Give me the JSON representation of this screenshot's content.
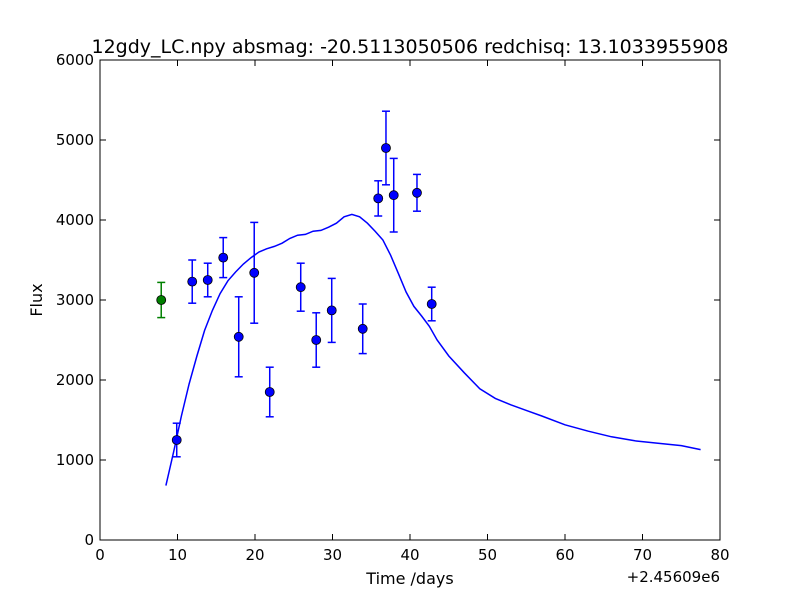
{
  "chart_data": {
    "type": "scatter",
    "title": "12gdy_LC.npy absmag: -20.5113050506 redchisq: 13.1033955908",
    "xlabel": "Time /days",
    "ylabel": "Flux",
    "x_offset_label": "+2.45609e6",
    "xlim": [
      0,
      80
    ],
    "ylim": [
      0,
      6000
    ],
    "xticks": [
      0,
      10,
      20,
      30,
      40,
      50,
      60,
      70,
      80
    ],
    "yticks": [
      0,
      1000,
      2000,
      3000,
      4000,
      5000,
      6000
    ],
    "grid": false,
    "legend": "none",
    "colors": {
      "points": "#0000ff",
      "outlier": "#008000",
      "model": "#0000ff"
    },
    "series": [
      {
        "kind": "errorbar",
        "color": "#0000ff",
        "points": [
          {
            "x": 9.9,
            "y": 1250,
            "err": 210
          },
          {
            "x": 11.9,
            "y": 3230,
            "err": 270
          },
          {
            "x": 13.9,
            "y": 3250,
            "err": 210
          },
          {
            "x": 15.9,
            "y": 3530,
            "err": 250
          },
          {
            "x": 17.9,
            "y": 2540,
            "err": 500
          },
          {
            "x": 19.9,
            "y": 3340,
            "err": 630
          },
          {
            "x": 21.9,
            "y": 1850,
            "err": 310
          },
          {
            "x": 25.9,
            "y": 3160,
            "err": 300
          },
          {
            "x": 27.9,
            "y": 2500,
            "err": 340
          },
          {
            "x": 29.9,
            "y": 2870,
            "err": 400
          },
          {
            "x": 33.9,
            "y": 2640,
            "err": 310
          },
          {
            "x": 35.9,
            "y": 4270,
            "err": 220
          },
          {
            "x": 36.9,
            "y": 4900,
            "err": 460
          },
          {
            "x": 37.9,
            "y": 4310,
            "err": 460
          },
          {
            "x": 40.9,
            "y": 4340,
            "err": 230
          },
          {
            "x": 42.8,
            "y": 2950,
            "err": 210
          }
        ]
      },
      {
        "kind": "errorbar",
        "color": "#008000",
        "points": [
          {
            "x": 7.9,
            "y": 3000,
            "err": 220
          }
        ]
      },
      {
        "kind": "line",
        "color": "#0000ff",
        "x": [
          8.5,
          9.5,
          10.5,
          11.5,
          12.5,
          13.5,
          14.5,
          15.5,
          16.5,
          17.5,
          18.5,
          19.5,
          20.5,
          21.5,
          22.5,
          23.5,
          24.5,
          25.5,
          26.5,
          27.5,
          28.5,
          29.5,
          30.5,
          31.5,
          32.5,
          33.5,
          34.5,
          35.5,
          36.5,
          37.5,
          38.5,
          39.5,
          40.5,
          41.5,
          42.5,
          43.5,
          45,
          47,
          49,
          51,
          53,
          55,
          57,
          60,
          63,
          66,
          69,
          72,
          75,
          77.5
        ],
        "y": [
          680,
          1100,
          1550,
          1950,
          2300,
          2620,
          2870,
          3080,
          3240,
          3350,
          3450,
          3530,
          3600,
          3640,
          3670,
          3710,
          3770,
          3810,
          3820,
          3860,
          3870,
          3910,
          3960,
          4040,
          4070,
          4040,
          3960,
          3860,
          3750,
          3560,
          3330,
          3100,
          2920,
          2800,
          2670,
          2500,
          2300,
          2090,
          1890,
          1770,
          1690,
          1620,
          1550,
          1440,
          1360,
          1290,
          1240,
          1210,
          1180,
          1130
        ]
      }
    ]
  }
}
